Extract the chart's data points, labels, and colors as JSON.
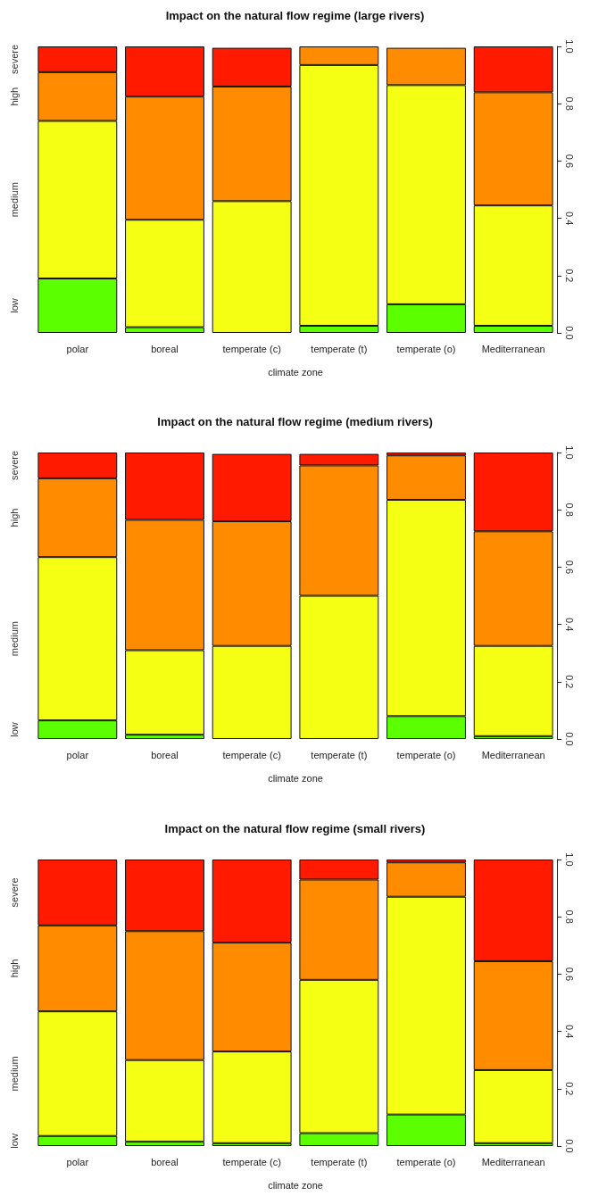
{
  "chart_data": [
    {
      "type": "bar",
      "title": "Impact on the natural flow regime (large rivers)",
      "xlabel": "climate zone",
      "stacked": true,
      "categories": [
        "polar",
        "boreal",
        "temperate (c)",
        "temperate (t)",
        "temperate (o)",
        "Mediterranean"
      ],
      "series": [
        {
          "name": "low",
          "color": "#5cff00",
          "values": [
            0.19,
            0.02,
            null,
            0.025,
            0.1,
            0.025
          ]
        },
        {
          "name": "medium",
          "color": "#f5ff14",
          "values": [
            0.55,
            0.375,
            0.46,
            0.91,
            0.765,
            0.42
          ]
        },
        {
          "name": "high",
          "color": "#ff8c00",
          "values": [
            0.17,
            0.43,
            0.4,
            0.065,
            0.13,
            0.395
          ]
        },
        {
          "name": "severe",
          "color": "#ff1a00",
          "values": [
            0.09,
            0.175,
            0.135,
            0,
            null,
            0.16
          ]
        }
      ],
      "ylim": [
        0,
        1
      ],
      "yticks": [
        {
          "value": 0,
          "label": "0.0"
        },
        {
          "value": 0.2,
          "label": "0.2"
        },
        {
          "value": 0.4,
          "label": "0.4"
        },
        {
          "value": 0.6,
          "label": "0.6"
        },
        {
          "value": 0.8,
          "label": "0.8"
        },
        {
          "value": 1,
          "label": "1.0"
        }
      ]
    },
    {
      "type": "bar",
      "title": "Impact on the natural flow regime (medium rivers)",
      "xlabel": "climate zone",
      "stacked": true,
      "categories": [
        "polar",
        "boreal",
        "temperate (c)",
        "temperate (t)",
        "temperate (o)",
        "Mediterranean"
      ],
      "series": [
        {
          "name": "low",
          "color": "#5cff00",
          "values": [
            0.065,
            0.015,
            null,
            null,
            0.08,
            0.01
          ]
        },
        {
          "name": "medium",
          "color": "#f5ff14",
          "values": [
            0.57,
            0.295,
            0.325,
            0.5,
            0.755,
            0.315
          ]
        },
        {
          "name": "high",
          "color": "#ff8c00",
          "values": [
            0.275,
            0.455,
            0.435,
            0.455,
            0.155,
            0.4
          ]
        },
        {
          "name": "severe",
          "color": "#ff1a00",
          "values": [
            0.09,
            0.235,
            0.235,
            0.04,
            0.01,
            0.275
          ]
        }
      ],
      "ylim": [
        0,
        1
      ],
      "yticks": [
        {
          "value": 0,
          "label": "0.0"
        },
        {
          "value": 0.2,
          "label": "0.2"
        },
        {
          "value": 0.4,
          "label": "0.4"
        },
        {
          "value": 0.6,
          "label": "0.6"
        },
        {
          "value": 0.8,
          "label": "0.8"
        },
        {
          "value": 1,
          "label": "1.0"
        }
      ]
    },
    {
      "type": "bar",
      "title": "Impact on the natural flow regime (small rivers)",
      "xlabel": "climate zone",
      "stacked": true,
      "categories": [
        "polar",
        "boreal",
        "temperate (c)",
        "temperate (t)",
        "temperate (o)",
        "Mediterranean"
      ],
      "series": [
        {
          "name": "low",
          "color": "#5cff00",
          "values": [
            0.035,
            0.015,
            0.01,
            0.045,
            0.11,
            0.01
          ]
        },
        {
          "name": "medium",
          "color": "#f5ff14",
          "values": [
            0.435,
            0.285,
            0.32,
            0.535,
            0.76,
            0.255
          ]
        },
        {
          "name": "high",
          "color": "#ff8c00",
          "values": [
            0.3,
            0.45,
            0.38,
            0.35,
            0.12,
            0.38
          ]
        },
        {
          "name": "severe",
          "color": "#ff1a00",
          "values": [
            0.23,
            0.25,
            0.29,
            0.07,
            0.01,
            0.355
          ]
        }
      ],
      "ylim": [
        0,
        1
      ],
      "yticks": [
        {
          "value": 0,
          "label": "0.0"
        },
        {
          "value": 0.2,
          "label": "0.2"
        },
        {
          "value": 0.4,
          "label": "0.4"
        },
        {
          "value": 0.6,
          "label": "0.6"
        },
        {
          "value": 0.8,
          "label": "0.8"
        },
        {
          "value": 1,
          "label": "1.0"
        }
      ]
    }
  ]
}
